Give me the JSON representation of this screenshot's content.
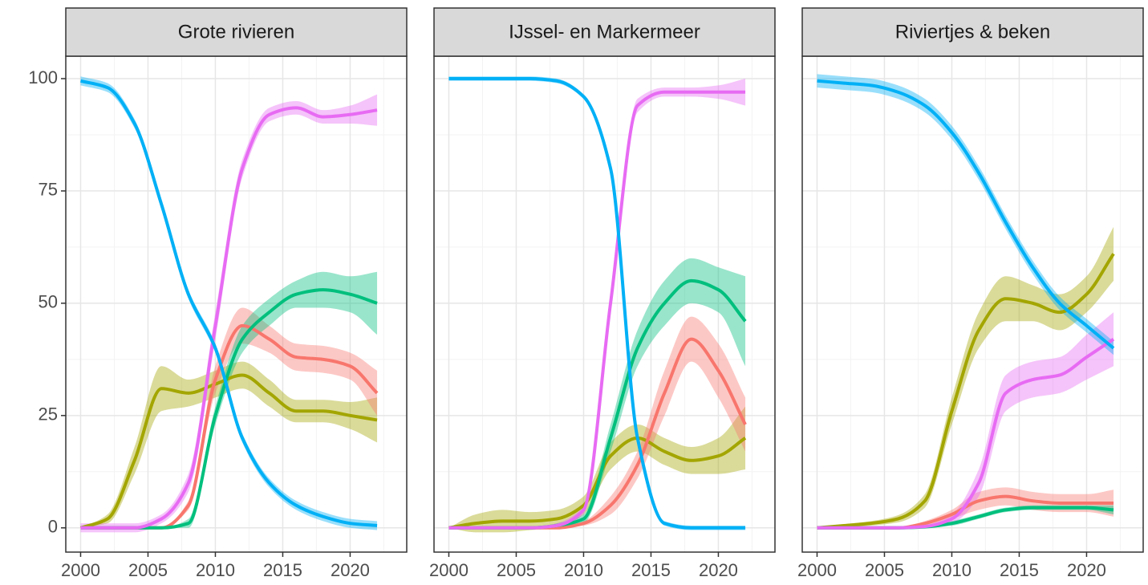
{
  "chart_data": [
    {
      "type": "line",
      "title": "Grote rivieren",
      "x": [
        2000,
        2002,
        2004,
        2006,
        2008,
        2010,
        2012,
        2014,
        2016,
        2018,
        2020,
        2022
      ],
      "xlim": [
        1998.9,
        2024.2
      ],
      "xticks": [
        2000,
        2005,
        2010,
        2015,
        2020
      ],
      "ylim": [
        -5.4,
        105
      ],
      "yticks": [
        0,
        25,
        50,
        75,
        100
      ],
      "grid": true,
      "series": [
        {
          "color": "#A3A500",
          "values": [
            0,
            2,
            15,
            31,
            30,
            32,
            34,
            30,
            26,
            26,
            25,
            24
          ],
          "errors": [
            0,
            1,
            3,
            5,
            3,
            3,
            3,
            3,
            2.5,
            2.5,
            3,
            5
          ]
        },
        {
          "color": "#F8766D",
          "values": [
            0,
            0,
            0,
            0,
            5,
            33,
            45,
            42,
            38,
            37.5,
            36,
            30
          ],
          "errors": [
            0,
            0,
            0,
            0,
            1,
            3,
            4,
            3,
            3,
            3,
            3,
            5
          ]
        },
        {
          "color": "#00BF7D",
          "values": [
            0,
            0,
            0,
            0,
            1,
            25,
            42,
            48,
            52,
            53,
            52,
            50
          ],
          "errors": [
            0,
            0,
            0,
            0,
            1,
            2,
            3,
            3,
            3,
            4,
            4,
            7
          ]
        },
        {
          "color": "#E76BF3",
          "values": [
            0,
            0,
            0,
            2,
            10,
            45,
            80,
            92,
            93.5,
            91.5,
            92,
            93
          ],
          "errors": [
            1,
            1,
            1,
            1,
            2,
            3,
            2,
            1.5,
            1.5,
            1.5,
            2,
            3.5
          ]
        },
        {
          "color": "#00B0F6",
          "values": [
            99.5,
            98,
            90,
            72,
            52,
            40,
            20,
            10,
            5,
            2.5,
            1,
            0.5
          ],
          "errors": [
            1,
            1,
            1,
            1,
            1,
            1,
            1,
            1,
            1,
            1,
            1,
            1
          ]
        }
      ]
    },
    {
      "type": "line",
      "title": "IJssel- en Markermeer",
      "x": [
        2000,
        2002,
        2004,
        2006,
        2008,
        2010,
        2012,
        2014,
        2016,
        2018,
        2020,
        2022
      ],
      "xlim": [
        1998.9,
        2024.2
      ],
      "xticks": [
        2000,
        2005,
        2010,
        2015,
        2020
      ],
      "ylim": [
        -5.4,
        105
      ],
      "yticks": [
        0,
        25,
        50,
        75,
        100
      ],
      "grid": true,
      "series": [
        {
          "color": "#A3A500",
          "values": [
            0,
            1,
            1.5,
            1.5,
            2,
            5,
            16,
            20,
            17,
            15,
            16,
            20
          ],
          "errors": [
            0,
            2,
            2.5,
            2,
            2,
            2,
            3,
            3,
            3,
            3,
            4,
            7
          ]
        },
        {
          "color": "#F8766D",
          "values": [
            0,
            0,
            0,
            0,
            0,
            1,
            5,
            14,
            30,
            42,
            35,
            23
          ],
          "errors": [
            0,
            0,
            0,
            0,
            0,
            0.5,
            2,
            3,
            5,
            5,
            6,
            6
          ]
        },
        {
          "color": "#00BF7D",
          "values": [
            0,
            0,
            0,
            0,
            0.5,
            2,
            20,
            40,
            50,
            55,
            53,
            46
          ],
          "errors": [
            0,
            0,
            0,
            0,
            0.5,
            1,
            3,
            4,
            5,
            5,
            5,
            10
          ]
        },
        {
          "color": "#E76BF3",
          "values": [
            0,
            0,
            0,
            0,
            0.5,
            4,
            50,
            94,
            97,
            97,
            97,
            97
          ],
          "errors": [
            0,
            0,
            0,
            0,
            0.5,
            1,
            2,
            1.5,
            1,
            1,
            1.5,
            3
          ]
        },
        {
          "color": "#00B0F6",
          "values": [
            100,
            100,
            100,
            100,
            99.5,
            96,
            80,
            20,
            1,
            0,
            0,
            0
          ],
          "errors": [
            0.5,
            0.5,
            0.5,
            0.5,
            0.5,
            0.5,
            0.5,
            0.5,
            0.5,
            0.5,
            0.5,
            0.5
          ]
        }
      ]
    },
    {
      "type": "line",
      "title": "Riviertjes & beken",
      "x": [
        2000,
        2002,
        2004,
        2006,
        2008,
        2010,
        2012,
        2014,
        2016,
        2018,
        2020,
        2022
      ],
      "xlim": [
        1998.9,
        2024.2
      ],
      "xticks": [
        2000,
        2005,
        2010,
        2015,
        2020
      ],
      "ylim": [
        -5.4,
        105
      ],
      "yticks": [
        0,
        25,
        50,
        75,
        100
      ],
      "grid": true,
      "series": [
        {
          "color": "#A3A500",
          "values": [
            0,
            0.5,
            1,
            2,
            6,
            26,
            44,
            51,
            50,
            48,
            52,
            61
          ],
          "errors": [
            0,
            0.3,
            0.5,
            0.8,
            1.5,
            3,
            4,
            5,
            4,
            4,
            4,
            6
          ]
        },
        {
          "color": "#F8766D",
          "values": [
            0,
            0,
            0,
            0,
            1,
            3,
            6,
            7,
            6,
            5.5,
            5.5,
            5.5
          ],
          "errors": [
            0,
            0,
            0,
            0,
            0.5,
            1,
            2,
            2,
            2,
            2,
            2,
            3
          ]
        },
        {
          "color": "#00BF7D",
          "values": [
            0,
            0,
            0,
            0,
            0.2,
            1,
            2.5,
            4,
            4.5,
            4.5,
            4.5,
            4
          ],
          "errors": [
            0,
            0,
            0,
            0,
            0.2,
            0.5,
            0.5,
            0.5,
            0.5,
            0.5,
            0.5,
            1
          ]
        },
        {
          "color": "#E76BF3",
          "values": [
            0,
            0,
            0,
            0,
            0.3,
            2,
            10,
            30,
            33,
            34,
            38,
            42
          ],
          "errors": [
            0,
            0,
            0,
            0,
            0.3,
            1,
            3,
            4,
            4,
            4,
            5,
            6
          ]
        },
        {
          "color": "#00B0F6",
          "values": [
            99.5,
            99,
            98.5,
            97,
            94,
            88,
            79,
            68,
            58,
            50,
            45,
            40
          ],
          "errors": [
            1.5,
            1.5,
            1.5,
            1.5,
            1.5,
            1.5,
            1.5,
            1.5,
            1.5,
            1.5,
            1.5,
            1.5
          ]
        }
      ]
    }
  ]
}
